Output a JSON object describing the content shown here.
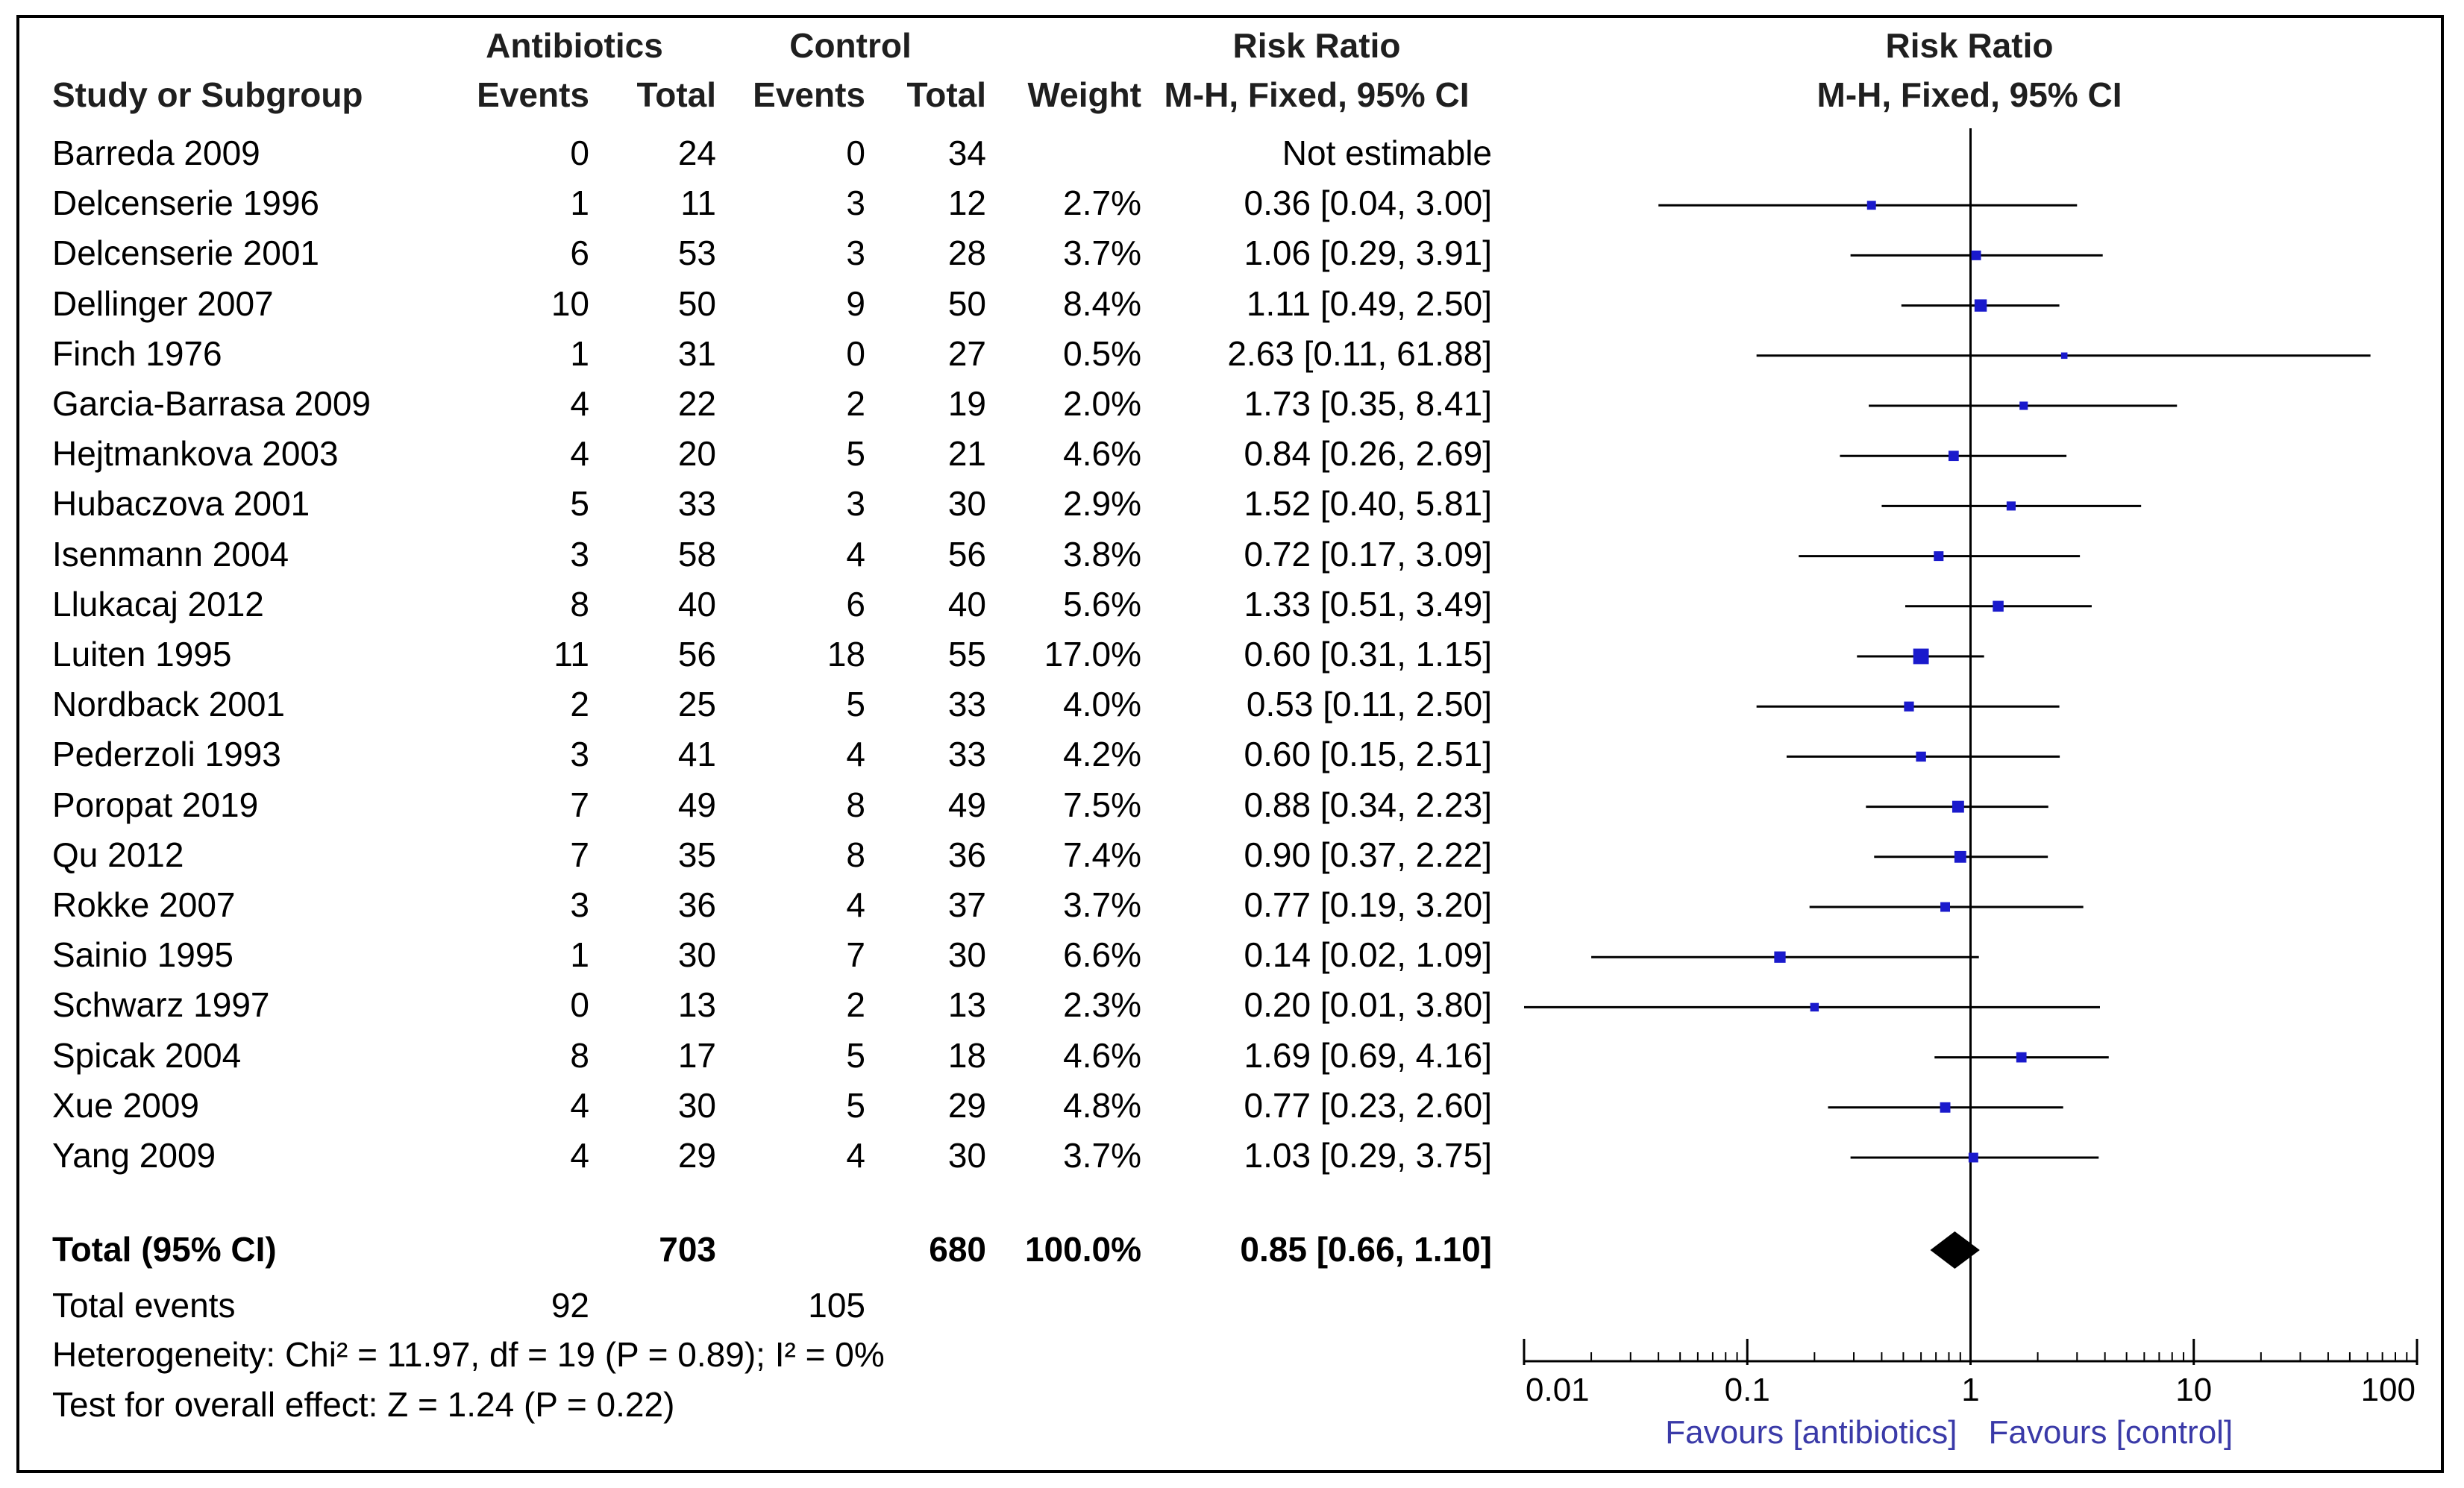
{
  "header": {
    "group1": "Antibiotics",
    "group2": "Control",
    "rr_title": "Risk Ratio",
    "rr_method": "M-H, Fixed, 95% CI",
    "plot_title": "Risk Ratio",
    "plot_method": "M-H, Fixed, 95% CI",
    "study_col": "Study or Subgroup",
    "events": "Events",
    "total": "Total",
    "events2": "Events",
    "total2": "Total",
    "weight": "Weight"
  },
  "studies": [
    {
      "name": "Barreda 2009",
      "e1": "0",
      "n1": "24",
      "e2": "0",
      "n2": "34",
      "weight": "",
      "ci_text": "Not estimable"
    },
    {
      "name": "Delcenserie 1996",
      "e1": "1",
      "n1": "11",
      "e2": "3",
      "n2": "12",
      "weight": "2.7%",
      "ci_text": "0.36 [0.04, 3.00]"
    },
    {
      "name": "Delcenserie 2001",
      "e1": "6",
      "n1": "53",
      "e2": "3",
      "n2": "28",
      "weight": "3.7%",
      "ci_text": "1.06 [0.29, 3.91]"
    },
    {
      "name": "Dellinger 2007",
      "e1": "10",
      "n1": "50",
      "e2": "9",
      "n2": "50",
      "weight": "8.4%",
      "ci_text": "1.11 [0.49, 2.50]"
    },
    {
      "name": "Finch 1976",
      "e1": "1",
      "n1": "31",
      "e2": "0",
      "n2": "27",
      "weight": "0.5%",
      "ci_text": "2.63 [0.11, 61.88]"
    },
    {
      "name": "Garcia-Barrasa 2009",
      "e1": "4",
      "n1": "22",
      "e2": "2",
      "n2": "19",
      "weight": "2.0%",
      "ci_text": "1.73 [0.35, 8.41]"
    },
    {
      "name": "Hejtmankova 2003",
      "e1": "4",
      "n1": "20",
      "e2": "5",
      "n2": "21",
      "weight": "4.6%",
      "ci_text": "0.84 [0.26, 2.69]"
    },
    {
      "name": "Hubaczova 2001",
      "e1": "5",
      "n1": "33",
      "e2": "3",
      "n2": "30",
      "weight": "2.9%",
      "ci_text": "1.52 [0.40, 5.81]"
    },
    {
      "name": "Isenmann 2004",
      "e1": "3",
      "n1": "58",
      "e2": "4",
      "n2": "56",
      "weight": "3.8%",
      "ci_text": "0.72 [0.17, 3.09]"
    },
    {
      "name": "Llukacaj 2012",
      "e1": "8",
      "n1": "40",
      "e2": "6",
      "n2": "40",
      "weight": "5.6%",
      "ci_text": "1.33 [0.51, 3.49]"
    },
    {
      "name": "Luiten 1995",
      "e1": "11",
      "n1": "56",
      "e2": "18",
      "n2": "55",
      "weight": "17.0%",
      "ci_text": "0.60 [0.31, 1.15]"
    },
    {
      "name": "Nordback 2001",
      "e1": "2",
      "n1": "25",
      "e2": "5",
      "n2": "33",
      "weight": "4.0%",
      "ci_text": "0.53 [0.11, 2.50]"
    },
    {
      "name": "Pederzoli 1993",
      "e1": "3",
      "n1": "41",
      "e2": "4",
      "n2": "33",
      "weight": "4.2%",
      "ci_text": "0.60 [0.15, 2.51]"
    },
    {
      "name": "Poropat 2019",
      "e1": "7",
      "n1": "49",
      "e2": "8",
      "n2": "49",
      "weight": "7.5%",
      "ci_text": "0.88 [0.34, 2.23]"
    },
    {
      "name": "Qu 2012",
      "e1": "7",
      "n1": "35",
      "e2": "8",
      "n2": "36",
      "weight": "7.4%",
      "ci_text": "0.90 [0.37, 2.22]"
    },
    {
      "name": "Rokke 2007",
      "e1": "3",
      "n1": "36",
      "e2": "4",
      "n2": "37",
      "weight": "3.7%",
      "ci_text": "0.77 [0.19, 3.20]"
    },
    {
      "name": "Sainio 1995",
      "e1": "1",
      "n1": "30",
      "e2": "7",
      "n2": "30",
      "weight": "6.6%",
      "ci_text": "0.14 [0.02, 1.09]"
    },
    {
      "name": "Schwarz 1997",
      "e1": "0",
      "n1": "13",
      "e2": "2",
      "n2": "13",
      "weight": "2.3%",
      "ci_text": "0.20 [0.01, 3.80]"
    },
    {
      "name": "Spicak 2004",
      "e1": "8",
      "n1": "17",
      "e2": "5",
      "n2": "18",
      "weight": "4.6%",
      "ci_text": "1.69 [0.69, 4.16]"
    },
    {
      "name": "Xue 2009",
      "e1": "4",
      "n1": "30",
      "e2": "5",
      "n2": "29",
      "weight": "4.8%",
      "ci_text": "0.77 [0.23, 2.60]"
    },
    {
      "name": "Yang 2009",
      "e1": "4",
      "n1": "29",
      "e2": "4",
      "n2": "30",
      "weight": "3.7%",
      "ci_text": "1.03 [0.29, 3.75]"
    }
  ],
  "total": {
    "label": "Total (95% CI)",
    "n1": "703",
    "n2": "680",
    "weight": "100.0%",
    "ci_text": "0.85 [0.66, 1.10]",
    "events_label": "Total events",
    "events1": "92",
    "events2": "105"
  },
  "footer": {
    "heterogeneity": "Heterogeneity: Chi² = 11.97, df = 19 (P = 0.89); I² = 0%",
    "overall": "Test for overall effect: Z = 1.24 (P = 0.22)"
  },
  "colors": {
    "marker": "#1a1acc",
    "line": "#000000"
  },
  "chart_data": {
    "type": "forest",
    "title": "Risk Ratio",
    "subtitle": "M-H, Fixed, 95% CI",
    "scale": "log",
    "xlim": [
      0.01,
      100
    ],
    "ticks": [
      0.01,
      0.1,
      1,
      10,
      100
    ],
    "tick_labels": [
      "0.01",
      "0.1",
      "1",
      "10",
      "100"
    ],
    "favours_left": "Favours [antibiotics]",
    "favours_right": "Favours [control]",
    "points": [
      {
        "study": "Barreda 2009",
        "rr": null,
        "lo": null,
        "hi": null,
        "weight": 0
      },
      {
        "study": "Delcenserie 1996",
        "rr": 0.36,
        "lo": 0.04,
        "hi": 3.0,
        "weight": 2.7
      },
      {
        "study": "Delcenserie 2001",
        "rr": 1.06,
        "lo": 0.29,
        "hi": 3.91,
        "weight": 3.7
      },
      {
        "study": "Dellinger 2007",
        "rr": 1.11,
        "lo": 0.49,
        "hi": 2.5,
        "weight": 8.4
      },
      {
        "study": "Finch 1976",
        "rr": 2.63,
        "lo": 0.11,
        "hi": 61.88,
        "weight": 0.5
      },
      {
        "study": "Garcia-Barrasa 2009",
        "rr": 1.73,
        "lo": 0.35,
        "hi": 8.41,
        "weight": 2.0
      },
      {
        "study": "Hejtmankova 2003",
        "rr": 0.84,
        "lo": 0.26,
        "hi": 2.69,
        "weight": 4.6
      },
      {
        "study": "Hubaczova 2001",
        "rr": 1.52,
        "lo": 0.4,
        "hi": 5.81,
        "weight": 2.9
      },
      {
        "study": "Isenmann 2004",
        "rr": 0.72,
        "lo": 0.17,
        "hi": 3.09,
        "weight": 3.8
      },
      {
        "study": "Llukacaj 2012",
        "rr": 1.33,
        "lo": 0.51,
        "hi": 3.49,
        "weight": 5.6
      },
      {
        "study": "Luiten 1995",
        "rr": 0.6,
        "lo": 0.31,
        "hi": 1.15,
        "weight": 17.0
      },
      {
        "study": "Nordback 2001",
        "rr": 0.53,
        "lo": 0.11,
        "hi": 2.5,
        "weight": 4.0
      },
      {
        "study": "Pederzoli 1993",
        "rr": 0.6,
        "lo": 0.15,
        "hi": 2.51,
        "weight": 4.2
      },
      {
        "study": "Poropat 2019",
        "rr": 0.88,
        "lo": 0.34,
        "hi": 2.23,
        "weight": 7.5
      },
      {
        "study": "Qu 2012",
        "rr": 0.9,
        "lo": 0.37,
        "hi": 2.22,
        "weight": 7.4
      },
      {
        "study": "Rokke 2007",
        "rr": 0.77,
        "lo": 0.19,
        "hi": 3.2,
        "weight": 3.7
      },
      {
        "study": "Sainio 1995",
        "rr": 0.14,
        "lo": 0.02,
        "hi": 1.09,
        "weight": 6.6
      },
      {
        "study": "Schwarz 1997",
        "rr": 0.2,
        "lo": 0.01,
        "hi": 3.8,
        "weight": 2.3
      },
      {
        "study": "Spicak 2004",
        "rr": 1.69,
        "lo": 0.69,
        "hi": 4.16,
        "weight": 4.6
      },
      {
        "study": "Xue 2009",
        "rr": 0.77,
        "lo": 0.23,
        "hi": 2.6,
        "weight": 4.8
      },
      {
        "study": "Yang 2009",
        "rr": 1.03,
        "lo": 0.29,
        "hi": 3.75,
        "weight": 3.7
      }
    ],
    "pooled": {
      "rr": 0.85,
      "lo": 0.66,
      "hi": 1.1
    }
  }
}
